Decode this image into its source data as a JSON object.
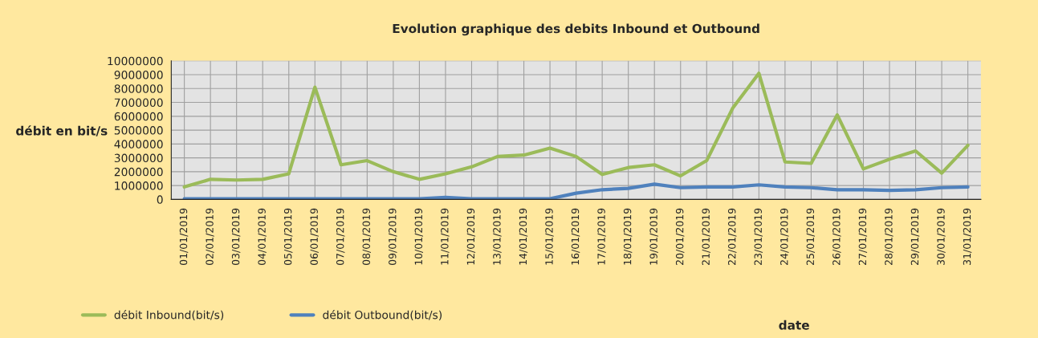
{
  "chart_data": {
    "type": "line",
    "title": "Evolution graphique des debits Inbound et Outbound",
    "xlabel": "date",
    "ylabel": "débit en bit/s",
    "categories": [
      "01/01/2019",
      "02/01/2019",
      "03/01/2019",
      "04/01/2019",
      "05/01/2019",
      "06/01/2019",
      "07/01/2019",
      "08/01/2019",
      "09/01/2019",
      "10/01/2019",
      "11/01/2019",
      "12/01/2019",
      "13/01/2019",
      "14/01/2019",
      "15/01/2019",
      "16/01/2019",
      "17/01/2019",
      "18/01/2019",
      "19/01/2019",
      "20/01/2019",
      "21/01/2019",
      "22/01/2019",
      "23/01/2019",
      "24/01/2019",
      "25/01/2019",
      "26/01/2019",
      "27/01/2019",
      "28/01/2019",
      "29/01/2019",
      "30/01/2019",
      "31/01/2019"
    ],
    "series": [
      {
        "name": "débit Inbound(bit/s)",
        "color": "#9bbb59",
        "values": [
          900000,
          1450000,
          1400000,
          1450000,
          1850000,
          8100000,
          2500000,
          2800000,
          2000000,
          1450000,
          1850000,
          2350000,
          3100000,
          3200000,
          3700000,
          3100000,
          1800000,
          2300000,
          2500000,
          1700000,
          2800000,
          6600000,
          9100000,
          2700000,
          2600000,
          6100000,
          2200000,
          2900000,
          3500000,
          1900000,
          3900000
        ]
      },
      {
        "name": "débit Outbound(bit/s)",
        "color": "#4f81bd",
        "values": [
          50000,
          50000,
          50000,
          50000,
          50000,
          50000,
          50000,
          50000,
          50000,
          50000,
          150000,
          50000,
          50000,
          50000,
          50000,
          450000,
          700000,
          800000,
          1100000,
          850000,
          900000,
          900000,
          1050000,
          900000,
          850000,
          700000,
          700000,
          650000,
          700000,
          850000,
          900000
        ]
      }
    ],
    "ylim": [
      0,
      10000000
    ],
    "yticks": [
      0,
      1000000,
      2000000,
      3000000,
      4000000,
      5000000,
      6000000,
      7000000,
      8000000,
      9000000,
      10000000
    ],
    "grid": true,
    "legend": "bottom left",
    "marker": "none",
    "line_style": "solid"
  }
}
